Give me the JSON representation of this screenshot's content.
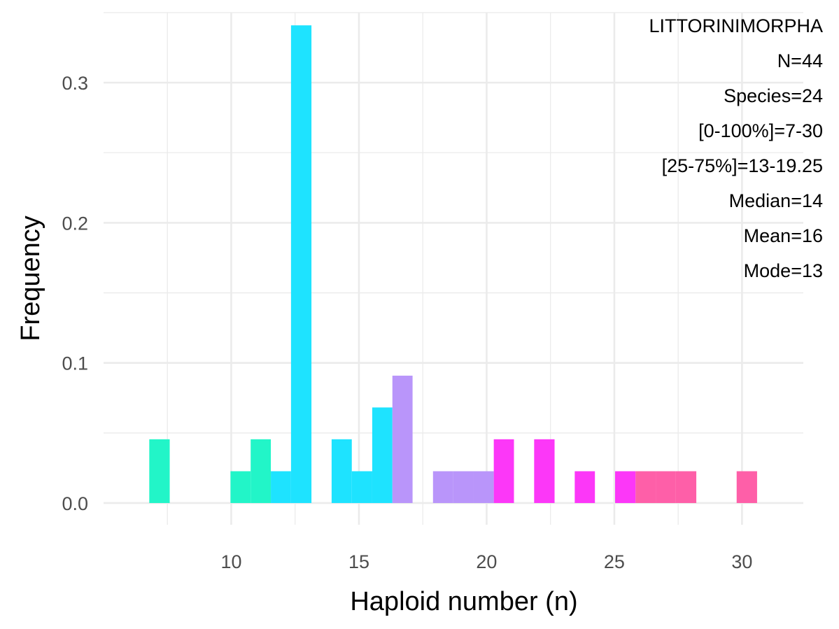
{
  "chart_data": {
    "type": "bar",
    "title": "",
    "xlabel": "Haploid number (n)",
    "ylabel": "Frequency",
    "xlim": [
      5.0,
      32.4
    ],
    "ylim": [
      -0.0155,
      0.35
    ],
    "grid": true,
    "x_ticks": [
      10,
      15,
      20,
      25,
      30
    ],
    "x_tick_labels": [
      "10",
      "15",
      "20",
      "25",
      "30"
    ],
    "y_ticks": [
      0.0,
      0.1,
      0.2,
      0.3
    ],
    "y_tick_labels": [
      "0.0",
      "0.1",
      "0.2",
      "0.3"
    ],
    "bin_width": 0.79,
    "bins": [
      {
        "x0": 6.79,
        "x1": 7.59,
        "value": 0.0455,
        "color": "#22f5c8"
      },
      {
        "x0": 9.97,
        "x1": 10.76,
        "value": 0.0227,
        "color": "#22f5c8"
      },
      {
        "x0": 10.76,
        "x1": 11.55,
        "value": 0.0455,
        "color": "#22f5c8"
      },
      {
        "x0": 11.55,
        "x1": 12.34,
        "value": 0.0227,
        "color": "#1ee3ff"
      },
      {
        "x0": 12.34,
        "x1": 13.14,
        "value": 0.3409,
        "color": "#1ee3ff"
      },
      {
        "x0": 13.93,
        "x1": 14.72,
        "value": 0.0455,
        "color": "#1ee3ff"
      },
      {
        "x0": 14.72,
        "x1": 15.52,
        "value": 0.0227,
        "color": "#1ee3ff"
      },
      {
        "x0": 15.52,
        "x1": 16.31,
        "value": 0.0682,
        "color": "#1ee3ff"
      },
      {
        "x0": 16.31,
        "x1": 17.1,
        "value": 0.0909,
        "color": "#b995fa"
      },
      {
        "x0": 17.9,
        "x1": 18.69,
        "value": 0.0227,
        "color": "#b995fa"
      },
      {
        "x0": 18.69,
        "x1": 19.48,
        "value": 0.0227,
        "color": "#b995fa"
      },
      {
        "x0": 19.48,
        "x1": 20.28,
        "value": 0.0227,
        "color": "#b995fa"
      },
      {
        "x0": 20.28,
        "x1": 21.07,
        "value": 0.0455,
        "color": "#fc37f8"
      },
      {
        "x0": 21.86,
        "x1": 22.66,
        "value": 0.0455,
        "color": "#fc37f8"
      },
      {
        "x0": 23.45,
        "x1": 24.24,
        "value": 0.0227,
        "color": "#fc37f8"
      },
      {
        "x0": 25.03,
        "x1": 25.83,
        "value": 0.0227,
        "color": "#fc37f8"
      },
      {
        "x0": 25.83,
        "x1": 26.62,
        "value": 0.0227,
        "color": "#fe5fa8"
      },
      {
        "x0": 26.62,
        "x1": 27.41,
        "value": 0.0227,
        "color": "#fe5fa8"
      },
      {
        "x0": 27.41,
        "x1": 28.21,
        "value": 0.0227,
        "color": "#fe5fa8"
      },
      {
        "x0": 29.79,
        "x1": 30.59,
        "value": 0.0227,
        "color": "#fe5fa8"
      }
    ],
    "annotations": [
      "LITTORINIMORPHA",
      "N=44",
      "Species=24",
      "[0-100%]=7-30",
      "[25-75%]=13-19.25",
      "Median=14",
      "Mean=16",
      "Mode=13"
    ],
    "annotation_placement": "top-right",
    "colors": {
      "background": "#ffffff",
      "grid": "#ebebeb",
      "tick_text": "#4d4d4d",
      "title_text": "#000000"
    }
  }
}
